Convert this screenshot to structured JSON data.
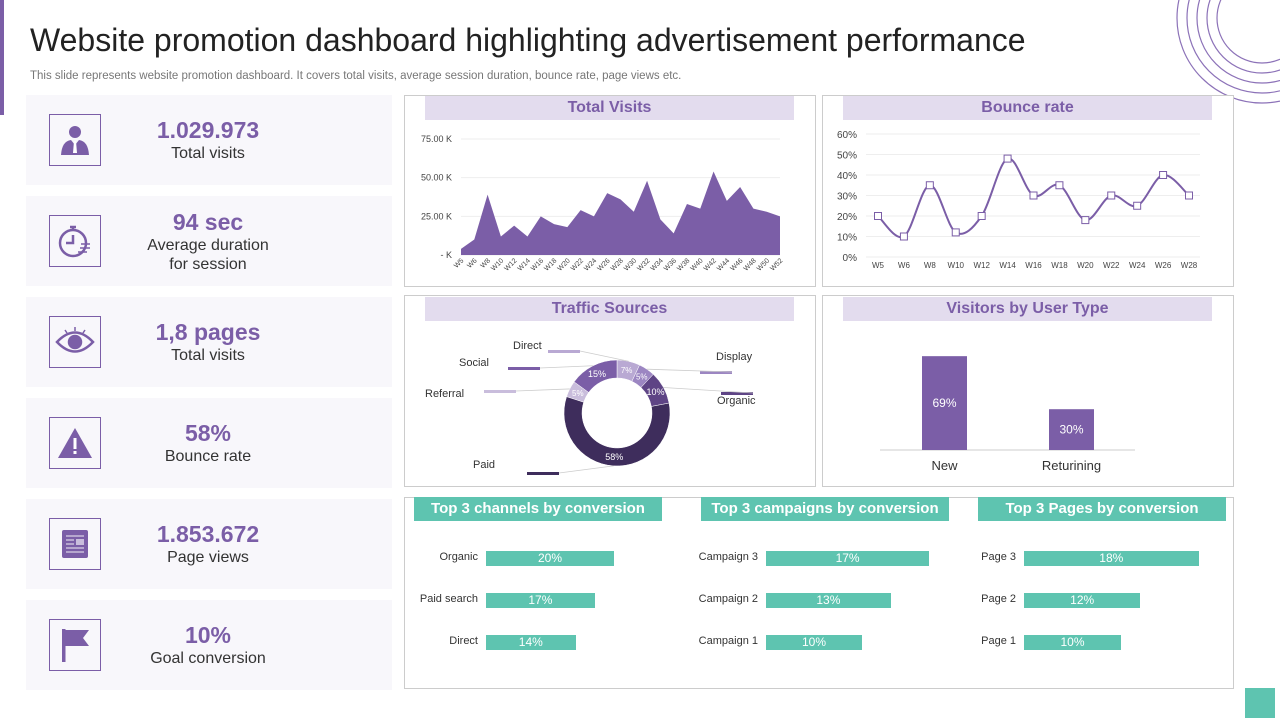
{
  "header": {
    "title": "Website promotion dashboard highlighting advertisement performance",
    "subtitle": "This slide represents website promotion dashboard. It covers total visits, average session duration, bounce rate, page views etc."
  },
  "colors": {
    "purple": "#7b5ea7",
    "dark_purple": "#3e2d5c",
    "lavender": "#e3dcee",
    "teal": "#5ec4b0"
  },
  "kpis": [
    {
      "icon": "businessman-icon",
      "value": "1.029.973",
      "label": "Total visits"
    },
    {
      "icon": "stopwatch-icon",
      "value": "94 sec",
      "label": "Average duration\nfor session"
    },
    {
      "icon": "eye-icon",
      "value": "1,8 pages",
      "label": "Total visits"
    },
    {
      "icon": "warning-icon",
      "value": "58%",
      "label": "Bounce rate"
    },
    {
      "icon": "newspaper-icon",
      "value": "1.853.672",
      "label": "Page views"
    },
    {
      "icon": "flag-icon",
      "value": "10%",
      "label": "Goal conversion"
    }
  ],
  "chart_data": [
    {
      "type": "area",
      "title": "Total Visits",
      "x": [
        "W5",
        "W6",
        "W8",
        "W10",
        "W12",
        "W14",
        "W16",
        "W18",
        "W20",
        "W22",
        "W24",
        "W26",
        "W28",
        "W30",
        "W32",
        "W34",
        "W36",
        "W38",
        "W40",
        "W42",
        "W44",
        "W46",
        "W48",
        "W50",
        "W52"
      ],
      "values": [
        4,
        10,
        39,
        12,
        19,
        12,
        25,
        20,
        18,
        29,
        25,
        40,
        36,
        28,
        48,
        23,
        14,
        33,
        30,
        54,
        35,
        44,
        30,
        28,
        25
      ],
      "unit": "K",
      "yticks": [
        "-  K",
        "25.00 K",
        "50.00 K",
        "75.00 K"
      ],
      "ylim": [
        0,
        75
      ],
      "grid": true
    },
    {
      "type": "line",
      "title": "Bounce rate",
      "x": [
        "W5",
        "W6",
        "W8",
        "W10",
        "W12",
        "W14",
        "W16",
        "W18",
        "W20",
        "W22",
        "W24",
        "W26",
        "W28"
      ],
      "values": [
        20,
        10,
        35,
        12,
        20,
        48,
        30,
        35,
        18,
        30,
        25,
        40,
        30
      ],
      "yticks": [
        "0%",
        "10%",
        "20%",
        "30%",
        "40%",
        "50%",
        "60%"
      ],
      "ylim": [
        0,
        60
      ],
      "grid": true
    },
    {
      "type": "pie",
      "title": "Traffic Sources",
      "donut": true,
      "slices": [
        {
          "name": "Direct",
          "value": 7,
          "label": "7%",
          "color": "#b9a9d3"
        },
        {
          "name": "Display",
          "value": 5,
          "label": "5%",
          "color": "#9c86c2"
        },
        {
          "name": "Organic",
          "value": 10,
          "label": "10%",
          "color": "#5e4485"
        },
        {
          "name": "Paid",
          "value": 58,
          "label": "58%",
          "color": "#3e2d5c"
        },
        {
          "name": "Referral",
          "value": 5,
          "label": "5%",
          "color": "#c9bddc"
        },
        {
          "name": "Social",
          "value": 15,
          "label": "15%",
          "color": "#7b5ea7"
        }
      ]
    },
    {
      "type": "bar",
      "title": "Visitors by User Type",
      "categories": [
        "New",
        "Returining"
      ],
      "values": [
        69,
        30
      ],
      "labels": [
        "69%",
        "30%"
      ]
    },
    {
      "type": "bar",
      "orientation": "horizontal",
      "title": "Top 3 channels by conversion",
      "categories": [
        "Organic",
        "Paid search",
        "Direct"
      ],
      "values": [
        20,
        17,
        14
      ],
      "labels": [
        "20%",
        "17%",
        "14%"
      ]
    },
    {
      "type": "bar",
      "orientation": "horizontal",
      "title": "Top 3 campaigns by conversion",
      "categories": [
        "Campaign 3",
        "Campaign 2",
        "Campaign 1"
      ],
      "values": [
        17,
        13,
        10
      ],
      "labels": [
        "17%",
        "13%",
        "10%"
      ]
    },
    {
      "type": "bar",
      "orientation": "horizontal",
      "title": "Top 3 Pages by conversion",
      "categories": [
        "Page 3",
        "Page 2",
        "Page 1"
      ],
      "values": [
        18,
        12,
        10
      ],
      "labels": [
        "18%",
        "12%",
        "10%"
      ]
    }
  ]
}
